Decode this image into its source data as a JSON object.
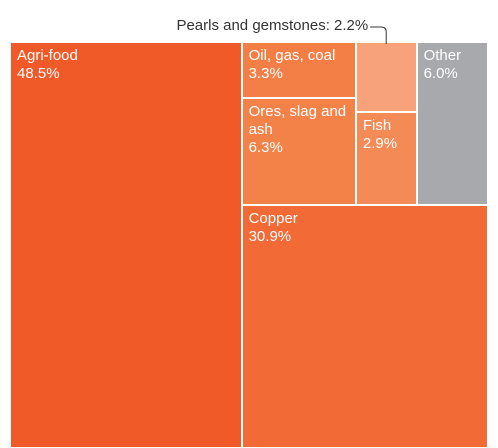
{
  "chart_data": {
    "type": "treemap",
    "annotation": "Pearls and gemstones: 2.2%",
    "categories": [
      "Agri-food",
      "Copper",
      "Oil, gas, coal",
      "Ores, slag and ash",
      "Pearls and gemstones",
      "Fish",
      "Other"
    ],
    "values": [
      48.5,
      30.9,
      3.3,
      6.3,
      2.2,
      2.9,
      6.0
    ],
    "value_labels": [
      "48.5%",
      "30.9%",
      "3.3%",
      "6.3%",
      null,
      "2.9%",
      "6.0%"
    ],
    "colors": [
      "#f05a28",
      "#f26a35",
      "#f37f47",
      "#f38249",
      "#f7a27b",
      "#f48a55",
      "#a8a9ad"
    ]
  }
}
